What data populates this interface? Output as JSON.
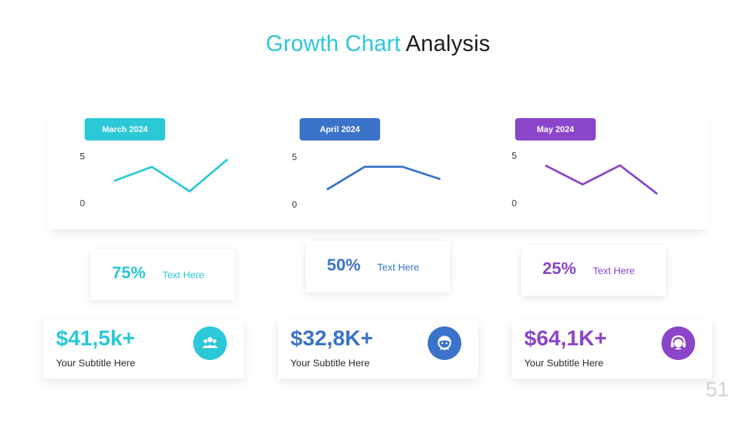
{
  "title": {
    "accent": "Growth Chart",
    "rest": "Analysis"
  },
  "colors": {
    "teal": "#2bc8d8",
    "blue": "#3a73c9",
    "purple": "#8a45c9"
  },
  "chart_data": [
    {
      "type": "line",
      "title": "March 2024",
      "x": [
        1,
        2,
        3,
        4
      ],
      "series": [
        {
          "values": [
            2.4,
            3.9,
            1.3,
            4.7
          ]
        }
      ],
      "yticks": [
        "5",
        "0"
      ],
      "ylim": [
        0,
        5
      ],
      "color": "#2bc8d8",
      "grid": false
    },
    {
      "type": "line",
      "title": "April 2024",
      "x": [
        1,
        2,
        3,
        4
      ],
      "series": [
        {
          "values": [
            1.6,
            4.0,
            4.0,
            2.7
          ]
        }
      ],
      "yticks": [
        "5",
        "0"
      ],
      "ylim": [
        0,
        5
      ],
      "color": "#3a73c9",
      "grid": false
    },
    {
      "type": "line",
      "title": "May 2024",
      "x": [
        1,
        2,
        3,
        4
      ],
      "series": [
        {
          "values": [
            4.0,
            2.0,
            4.0,
            1.0
          ]
        }
      ],
      "yticks": [
        "5",
        "0"
      ],
      "ylim": [
        0,
        5
      ],
      "color": "#8a45c9",
      "grid": false
    }
  ],
  "percent_cards": [
    {
      "value": "75%",
      "label": "Text Here"
    },
    {
      "value": "50%",
      "label": "Text Here"
    },
    {
      "value": "25%",
      "label": "Text Here"
    }
  ],
  "stat_cards": [
    {
      "amount": "$41,5k+",
      "subtitle": "Your Subtitle Here",
      "icon": "users-group-icon"
    },
    {
      "amount": "$32,8K+",
      "subtitle": "Your Subtitle Here",
      "icon": "support-agent-icon"
    },
    {
      "amount": "$64,1K+",
      "subtitle": "Your Subtitle Here",
      "icon": "agent-headset-icon"
    }
  ],
  "page_number": "51"
}
